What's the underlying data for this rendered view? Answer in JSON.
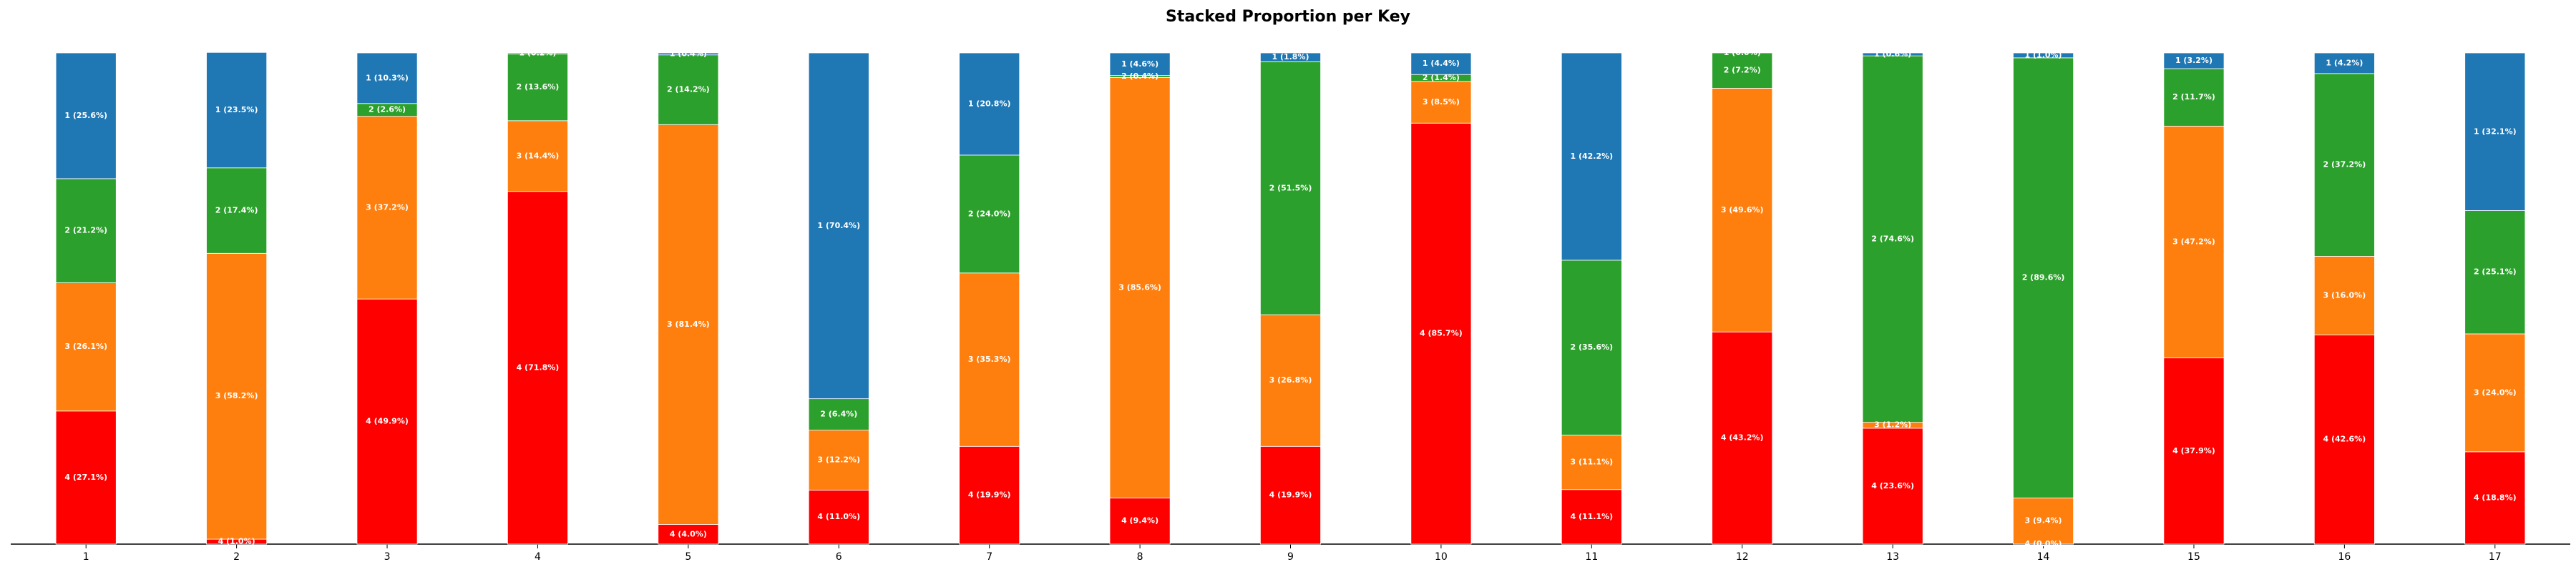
{
  "chart_data": {
    "type": "stacked-bar",
    "title": "Stacked Proportion per Key",
    "categories": [
      "1",
      "2",
      "3",
      "4",
      "5",
      "6",
      "7",
      "8",
      "9",
      "10",
      "11",
      "12",
      "13",
      "14",
      "15",
      "16",
      "17"
    ],
    "ylim": [
      0,
      100
    ],
    "series": [
      {
        "color": "#ff0000",
        "values": [
          27.1,
          1.0,
          49.9,
          71.8,
          4.0,
          11.0,
          19.9,
          9.4,
          19.9,
          85.7,
          11.1,
          43.2,
          23.6,
          0.0,
          37.9,
          42.6,
          18.8
        ],
        "value_labels": [
          "4 (27.1%)",
          "4 (1.0%)",
          "4 (49.9%)",
          "4 (71.8%)",
          "4 (4.0%)",
          "4 (11.0%)",
          "4 (19.9%)",
          "4 (9.4%)",
          "4 (19.9%)",
          "4 (85.7%)",
          "4 (11.1%)",
          "4 (43.2%)",
          "4 (23.6%)",
          "4 (0.0%)",
          "4 (37.9%)",
          "4 (42.6%)",
          "4 (18.8%)"
        ]
      },
      {
        "color": "#ff7f0e",
        "values": [
          26.1,
          58.2,
          37.2,
          14.4,
          81.4,
          12.2,
          35.3,
          85.6,
          26.8,
          8.5,
          11.1,
          49.6,
          1.2,
          9.4,
          47.2,
          16.0,
          24.0
        ],
        "value_labels": [
          "3 (26.1%)",
          "3 (58.2%)",
          "3 (37.2%)",
          "3 (14.4%)",
          "3 (81.4%)",
          "3 (12.2%)",
          "3 (35.3%)",
          "3 (85.6%)",
          "3 (26.8%)",
          "3 (8.5%)",
          "3 (11.1%)",
          "3 (49.6%)",
          "3 (1.2%)",
          "3 (9.4%)",
          "3 (47.2%)",
          "3 (16.0%)",
          "3 (24.0%)"
        ]
      },
      {
        "color": "#2ca02c",
        "values": [
          21.2,
          17.4,
          2.6,
          13.6,
          14.2,
          6.4,
          24.0,
          0.4,
          51.5,
          1.4,
          35.6,
          7.2,
          74.6,
          89.6,
          11.7,
          37.2,
          25.1
        ],
        "value_labels": [
          "2 (21.2%)",
          "2 (17.4%)",
          "2 (2.6%)",
          "2 (13.6%)",
          "2 (14.2%)",
          "2 (6.4%)",
          "2 (24.0%)",
          "2 (0.4%)",
          "2 (51.5%)",
          "2 (1.4%)",
          "2 (35.6%)",
          "2 (7.2%)",
          "2 (74.6%)",
          "2 (89.6%)",
          "2 (11.7%)",
          "2 (37.2%)",
          "2 (25.1%)"
        ]
      },
      {
        "color": "#1f77b4",
        "values": [
          25.6,
          23.5,
          10.3,
          0.2,
          0.4,
          70.4,
          20.8,
          4.6,
          1.8,
          4.4,
          42.2,
          0.0,
          0.6,
          1.0,
          3.2,
          4.2,
          32.1
        ],
        "value_labels": [
          "1 (25.6%)",
          "1 (23.5%)",
          "1 (10.3%)",
          "1 (0.2%)",
          "1 (0.4%)",
          "1 (70.4%)",
          "1 (20.8%)",
          "1 (4.6%)",
          "1 (1.8%)",
          "1 (4.4%)",
          "1 (42.2%)",
          "1 (0.0%)",
          "1 (0.6%)",
          "1 (1.0%)",
          "1 (3.2%)",
          "1 (4.2%)",
          "1 (32.1%)"
        ]
      }
    ]
  }
}
